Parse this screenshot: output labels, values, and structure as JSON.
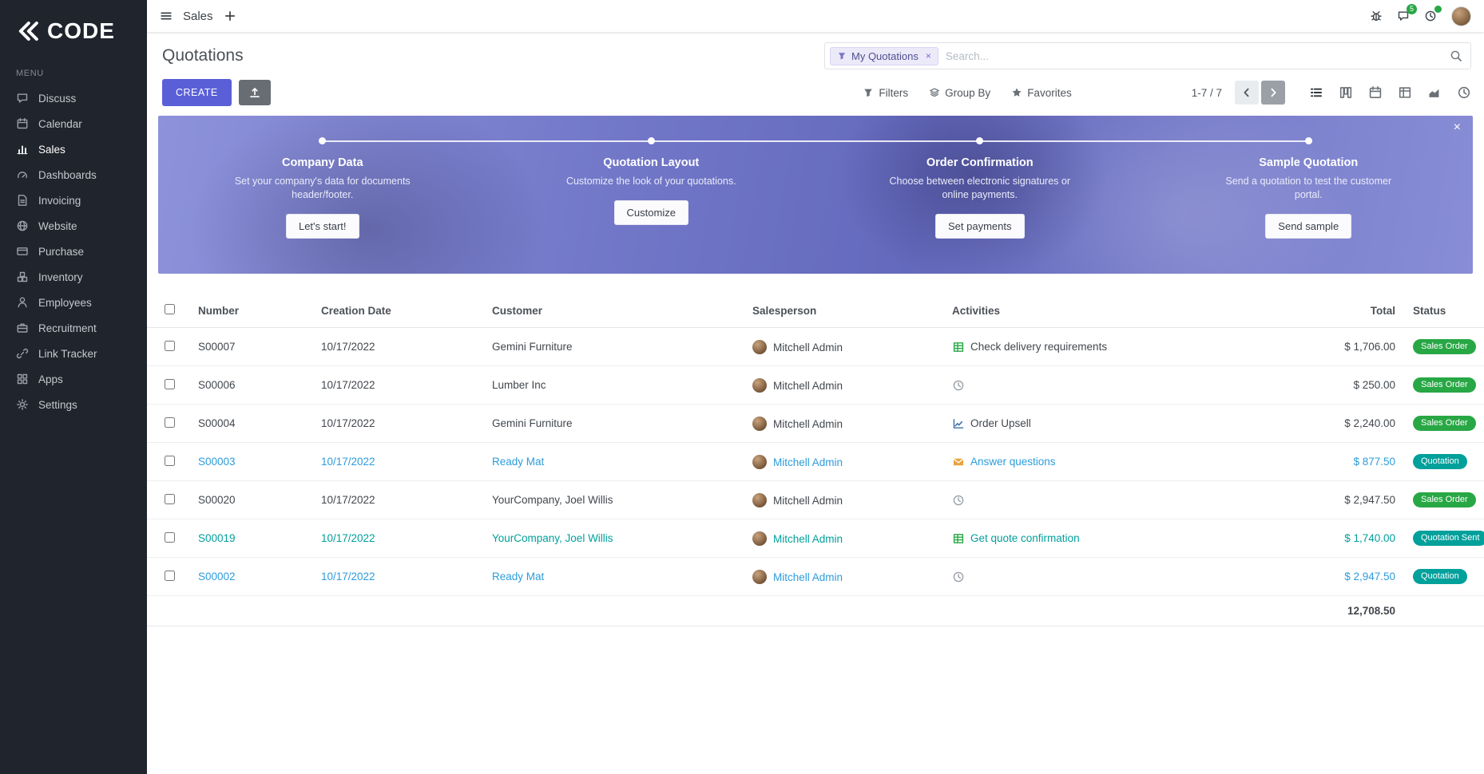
{
  "brand": {
    "name": "CODE"
  },
  "topbar": {
    "app_name": "Sales",
    "messages_badge": "5"
  },
  "sidebar": {
    "menu_label": "MENU",
    "items": [
      {
        "label": "Discuss",
        "icon": "chat"
      },
      {
        "label": "Calendar",
        "icon": "calendar"
      },
      {
        "label": "Sales",
        "icon": "bars",
        "active": true
      },
      {
        "label": "Dashboards",
        "icon": "gauge"
      },
      {
        "label": "Invoicing",
        "icon": "doc"
      },
      {
        "label": "Website",
        "icon": "globe"
      },
      {
        "label": "Purchase",
        "icon": "card"
      },
      {
        "label": "Inventory",
        "icon": "boxes"
      },
      {
        "label": "Employees",
        "icon": "person"
      },
      {
        "label": "Recruitment",
        "icon": "case"
      },
      {
        "label": "Link Tracker",
        "icon": "link"
      },
      {
        "label": "Apps",
        "icon": "grid"
      },
      {
        "label": "Settings",
        "icon": "gear"
      }
    ]
  },
  "control_panel": {
    "title": "Quotations",
    "create_label": "CREATE",
    "filter_chip": "My Quotations",
    "search_placeholder": "Search...",
    "filters_label": "Filters",
    "group_by_label": "Group By",
    "favorites_label": "Favorites",
    "pager": "1-7 / 7"
  },
  "banner": {
    "steps": [
      {
        "title": "Company Data",
        "desc": "Set your company's data for documents header/footer.",
        "button": "Let's start!"
      },
      {
        "title": "Quotation Layout",
        "desc": "Customize the look of your quotations.",
        "button": "Customize"
      },
      {
        "title": "Order Confirmation",
        "desc": "Choose between electronic signatures or online payments.",
        "button": "Set payments"
      },
      {
        "title": "Sample Quotation",
        "desc": "Send a quotation to test the customer portal.",
        "button": "Send sample"
      }
    ]
  },
  "table": {
    "headers": [
      "Number",
      "Creation Date",
      "Customer",
      "Salesperson",
      "Activities",
      "Total",
      "Status"
    ],
    "rows": [
      {
        "number": "S00007",
        "creation_date": "10/17/2022",
        "customer": "Gemini Furniture",
        "salesperson": "Mitchell Admin",
        "activity": {
          "icon": "sheet",
          "text": "Check delivery requirements"
        },
        "total": "$ 1,706.00",
        "status": "Sales Order",
        "status_type": "sale",
        "tone": "default"
      },
      {
        "number": "S00006",
        "creation_date": "10/17/2022",
        "customer": "Lumber Inc",
        "salesperson": "Mitchell Admin",
        "activity": {
          "icon": "clock",
          "text": ""
        },
        "total": "$ 250.00",
        "status": "Sales Order",
        "status_type": "sale",
        "tone": "default"
      },
      {
        "number": "S00004",
        "creation_date": "10/17/2022",
        "customer": "Gemini Furniture",
        "salesperson": "Mitchell Admin",
        "activity": {
          "icon": "linechart",
          "text": "Order Upsell"
        },
        "total": "$ 2,240.00",
        "status": "Sales Order",
        "status_type": "sale",
        "tone": "default"
      },
      {
        "number": "S00003",
        "creation_date": "10/17/2022",
        "customer": "Ready Mat",
        "salesperson": "Mitchell Admin",
        "activity": {
          "icon": "mail",
          "text": "Answer questions"
        },
        "total": "$ 877.50",
        "status": "Quotation",
        "status_type": "quotation",
        "tone": "blue"
      },
      {
        "number": "S00020",
        "creation_date": "10/17/2022",
        "customer": "YourCompany, Joel Willis",
        "salesperson": "Mitchell Admin",
        "activity": {
          "icon": "clock",
          "text": ""
        },
        "total": "$ 2,947.50",
        "status": "Sales Order",
        "status_type": "sale",
        "tone": "default"
      },
      {
        "number": "S00019",
        "creation_date": "10/17/2022",
        "customer": "YourCompany, Joel Willis",
        "salesperson": "Mitchell Admin",
        "activity": {
          "icon": "sheet",
          "text": "Get quote confirmation"
        },
        "total": "$ 1,740.00",
        "status": "Quotation Sent",
        "status_type": "quotation",
        "tone": "teal"
      },
      {
        "number": "S00002",
        "creation_date": "10/17/2022",
        "customer": "Ready Mat",
        "salesperson": "Mitchell Admin",
        "activity": {
          "icon": "clock",
          "text": ""
        },
        "total": "$ 2,947.50",
        "status": "Quotation",
        "status_type": "quotation",
        "tone": "blue"
      }
    ],
    "footer_total": "12,708.50"
  },
  "colors": {
    "primary": "#5a5fd8",
    "sidebar_bg": "#20242c",
    "banner_purple": "#6469bd",
    "status_sale_green": "#28a745",
    "status_quotation_teal": "#00a09b",
    "row_blue": "#2d9cdb",
    "row_teal": "#00a09b"
  }
}
